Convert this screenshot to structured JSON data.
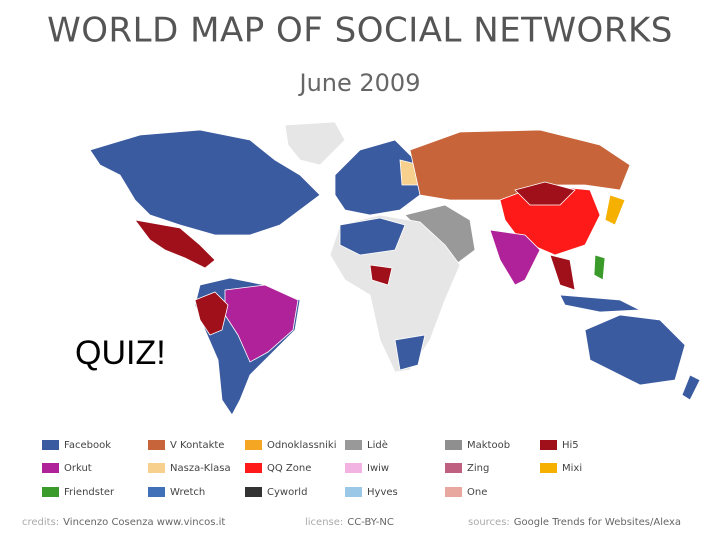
{
  "header": {
    "title": "WORLD MAP OF SOCIAL NETWORKS",
    "subtitle": "June 2009"
  },
  "overlay": "QUIZ!",
  "legend": [
    {
      "name": "Facebook",
      "color": "#3b5ba0"
    },
    {
      "name": "Orkut",
      "color": "#b0229a"
    },
    {
      "name": "Friendster",
      "color": "#3a9a2a"
    },
    {
      "name": "V Kontakte",
      "color": "#c8643a"
    },
    {
      "name": "Nasza-Klasa",
      "color": "#f7d08e"
    },
    {
      "name": "Wretch",
      "color": "#3f70b8"
    },
    {
      "name": "Odnoklassniki",
      "color": "#f5a623"
    },
    {
      "name": "QQ Zone",
      "color": "#ff1a1a"
    },
    {
      "name": "Cyworld",
      "color": "#333333"
    },
    {
      "name": "Lidè",
      "color": "#999999"
    },
    {
      "name": "Iwiw",
      "color": "#f2b2e2"
    },
    {
      "name": "Hyves",
      "color": "#9cc8e8"
    },
    {
      "name": "Maktoob",
      "color": "#8f8f8f"
    },
    {
      "name": "Zing",
      "color": "#c06080"
    },
    {
      "name": "One",
      "color": "#e8a8a0"
    },
    {
      "name": "Hi5",
      "color": "#a0101a"
    },
    {
      "name": "Mixi",
      "color": "#f5b000"
    }
  ],
  "credits": [
    {
      "label": "credits:",
      "text": "Vincenzo Cosenza  www.vincos.it"
    },
    {
      "label": "license:",
      "text": "CC-BY-NC"
    },
    {
      "label": "sources:",
      "text": "Google Trends for Websites/Alexa"
    }
  ]
}
